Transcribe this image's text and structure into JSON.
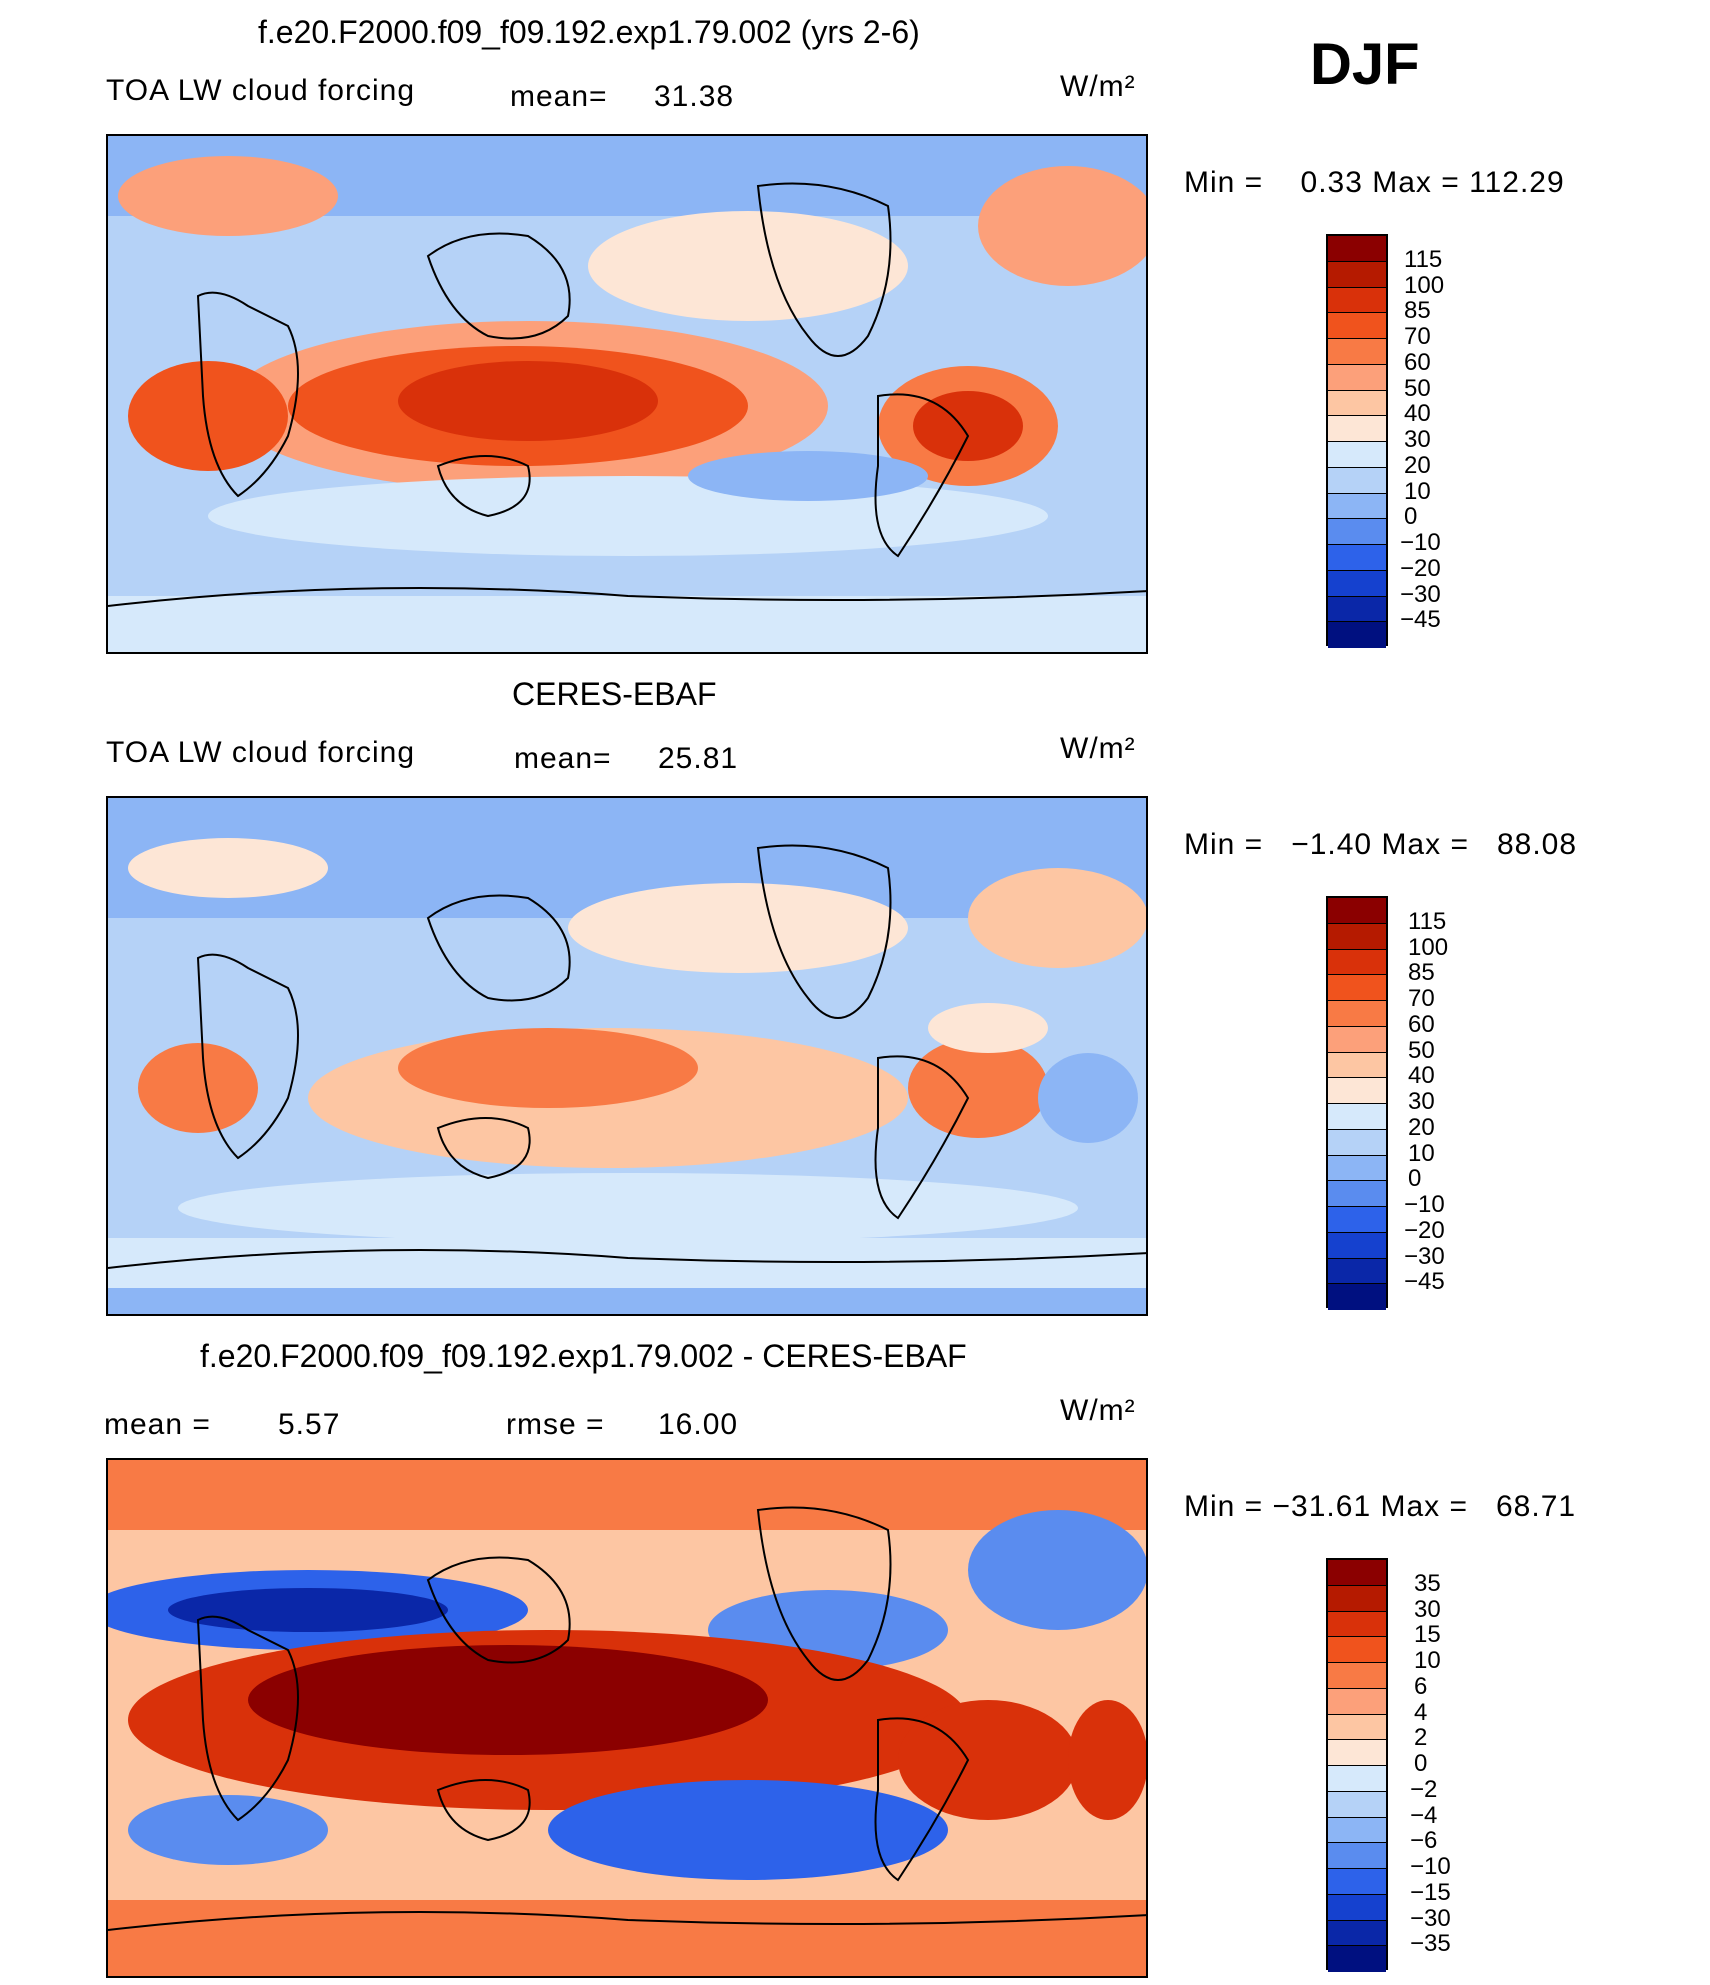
{
  "season": "DJF",
  "unit": "W/m²",
  "panels": [
    {
      "title": "f.e20.F2000.f09_f09.192.exp1.79.002 (yrs 2-6)",
      "variable": "TOA LW cloud forcing",
      "mean_label": "mean=",
      "mean_value": "31.38",
      "min_max": "Min =    0.33 Max = 112.29",
      "levels": [
        "115",
        "100",
        "85",
        "70",
        "60",
        "50",
        "40",
        "30",
        "20",
        "10",
        "0",
        "−10",
        "−20",
        "−30",
        "−45"
      ],
      "colors": [
        "#8b0000",
        "#b51a00",
        "#d9310a",
        "#f0531d",
        "#f87a45",
        "#fca07a",
        "#fdc6a3",
        "#fde6d6",
        "#d6e9fb",
        "#b5d2f7",
        "#8cb5f5",
        "#5a8cef",
        "#2d62ea",
        "#1541cf",
        "#0a27a8",
        "#001080"
      ]
    },
    {
      "title": "CERES-EBAF",
      "variable": "TOA LW cloud forcing",
      "mean_label": "mean=",
      "mean_value": "25.81",
      "min_max": "Min =   −1.40 Max =   88.08",
      "levels": [
        "115",
        "100",
        "85",
        "70",
        "60",
        "50",
        "40",
        "30",
        "20",
        "10",
        "0",
        "−10",
        "−20",
        "−30",
        "−45"
      ],
      "colors": [
        "#8b0000",
        "#b51a00",
        "#d9310a",
        "#f0531d",
        "#f87a45",
        "#fca07a",
        "#fdc6a3",
        "#fde6d6",
        "#d6e9fb",
        "#b5d2f7",
        "#8cb5f5",
        "#5a8cef",
        "#2d62ea",
        "#1541cf",
        "#0a27a8",
        "#001080"
      ]
    },
    {
      "title": "f.e20.F2000.f09_f09.192.exp1.79.002 - CERES-EBAF",
      "stat1_label": "mean =",
      "stat1_value": "5.57",
      "stat2_label": "rmse =",
      "stat2_value": "16.00",
      "min_max": "Min = −31.61 Max =   68.71",
      "levels": [
        "35",
        "30",
        "15",
        "10",
        "6",
        "4",
        "2",
        "0",
        "−2",
        "−4",
        "−6",
        "−10",
        "−15",
        "−30",
        "−35"
      ],
      "colors": [
        "#8b0000",
        "#b51a00",
        "#d9310a",
        "#f0531d",
        "#f87a45",
        "#fca07a",
        "#fdc6a3",
        "#fde6d6",
        "#d6e9fb",
        "#b5d2f7",
        "#8cb5f5",
        "#5a8cef",
        "#2d62ea",
        "#1541cf",
        "#0a27a8",
        "#001080"
      ]
    }
  ]
}
